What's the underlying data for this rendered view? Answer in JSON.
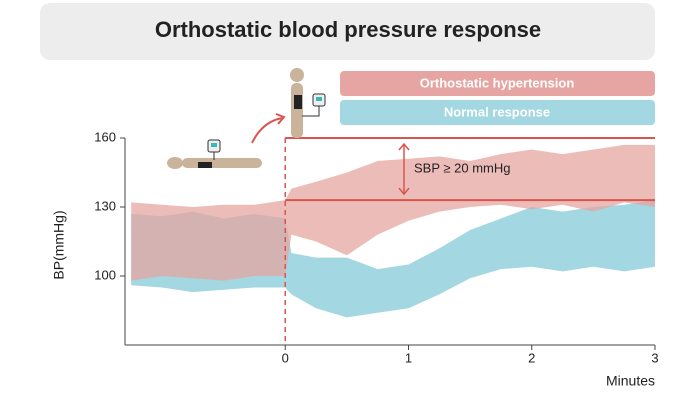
{
  "chart_data": {
    "type": "band",
    "title": "Orthostatic blood pressure response",
    "y_label": "BP(mmHg)",
    "x_label": "Minutes",
    "annotation": "SBP ≥ 20 mmHg",
    "x": [
      -1.25,
      -1,
      -0.75,
      -0.5,
      -0.25,
      0,
      0.05,
      0.25,
      0.5,
      0.75,
      1,
      1.25,
      1.5,
      1.75,
      2,
      2.25,
      2.5,
      2.75,
      3
    ],
    "series": [
      {
        "name": "Normal response",
        "color": "#a3d7e2",
        "upper": [
          127,
          126,
          128,
          125,
          127,
          125,
          110,
          108,
          108,
          103,
          105,
          112,
          120,
          125,
          130,
          128,
          130,
          131,
          133
        ],
        "lower": [
          96,
          95,
          93,
          94,
          95,
          95,
          92,
          86,
          82,
          84,
          86,
          92,
          99,
          103,
          104,
          102,
          104,
          102,
          104
        ]
      },
      {
        "name": "Orthostatic hypertension",
        "color": "#e6a5a2",
        "upper": [
          132,
          131,
          130,
          131,
          131,
          133,
          138,
          141,
          145,
          150,
          151,
          152,
          150,
          153,
          155,
          153,
          155,
          157,
          157
        ],
        "lower": [
          98,
          100,
          99,
          98,
          100,
          100,
          118,
          115,
          109,
          118,
          124,
          128,
          130,
          131,
          129,
          131,
          128,
          132,
          130
        ]
      }
    ],
    "hlines": [
      160,
      133
    ],
    "vline": 0,
    "xlim": [
      -1.3,
      3
    ],
    "ylim": [
      70,
      160
    ],
    "xticks": [
      0,
      1,
      2,
      3
    ],
    "yticks": [
      100,
      130,
      160
    ]
  }
}
